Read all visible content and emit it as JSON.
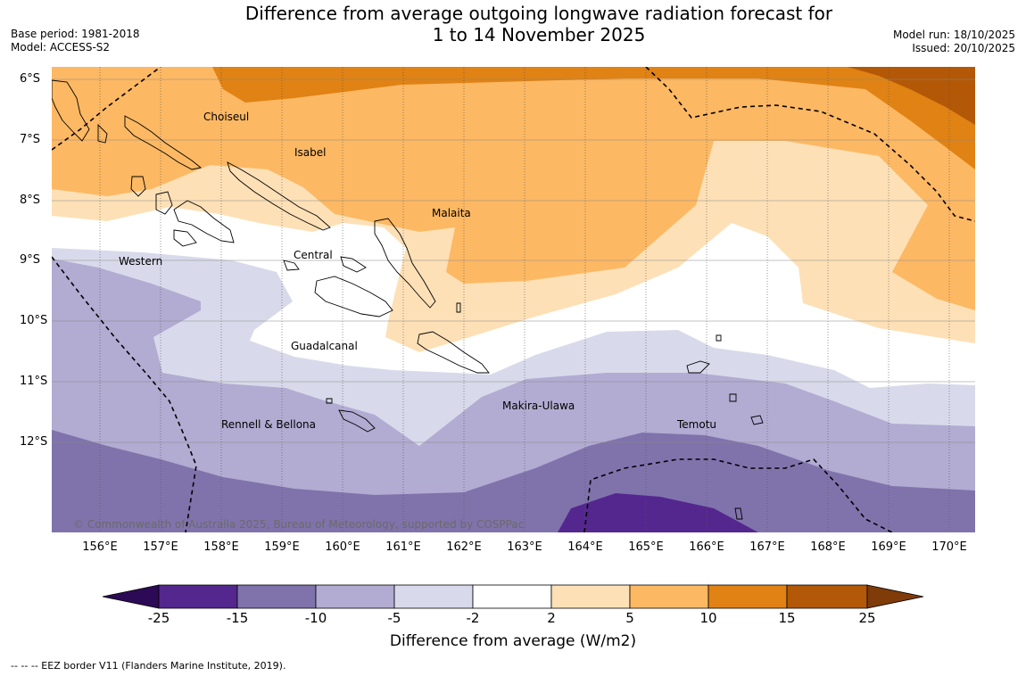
{
  "title": {
    "line1": "Difference from average outgoing longwave radiation forecast for",
    "line2": "1 to 14 November 2025"
  },
  "meta": {
    "base_period": "Base period: 1981-2018",
    "model": "Model: ACCESS-S2",
    "model_run": "Model run: 18/10/2025",
    "issued": "Issued: 20/10/2025"
  },
  "map": {
    "lon_labels": [
      "156°E",
      "157°E",
      "158°E",
      "159°E",
      "160°E",
      "161°E",
      "162°E",
      "163°E",
      "164°E",
      "165°E",
      "166°E",
      "167°E",
      "168°E",
      "169°E",
      "170°E"
    ],
    "lat_labels": [
      "6°S",
      "7°S",
      "8°S",
      "9°S",
      "10°S",
      "11°S",
      "12°S"
    ],
    "places": {
      "choiseul": "Choiseul",
      "isabel": "Isabel",
      "malaita": "Malaita",
      "western": "Western",
      "central": "Central",
      "guadalcanal": "Guadalcanal",
      "makira": "Makira-Ulawa",
      "temotu": "Temotu",
      "rennell": "Rennell & Bellona"
    },
    "copyright": "© Commonwealth of Australia 2025, Bureau of Meteorology, supported by COSPPac"
  },
  "colorbar": {
    "ticks": [
      "-25",
      "-15",
      "-10",
      "-5",
      "-2",
      "2",
      "5",
      "10",
      "15",
      "25"
    ],
    "colors": [
      "#2d0a55",
      "#54278f",
      "#8073ac",
      "#b2abd2",
      "#d8daeb",
      "#ffffff",
      "#fee0b6",
      "#fdb863",
      "#e08214",
      "#b35806",
      "#7f3b08"
    ],
    "title": "Difference from average (W/m2)"
  },
  "footnote": "--  --  -- EEZ border V11 (Flanders Marine Institute, 2019)."
}
